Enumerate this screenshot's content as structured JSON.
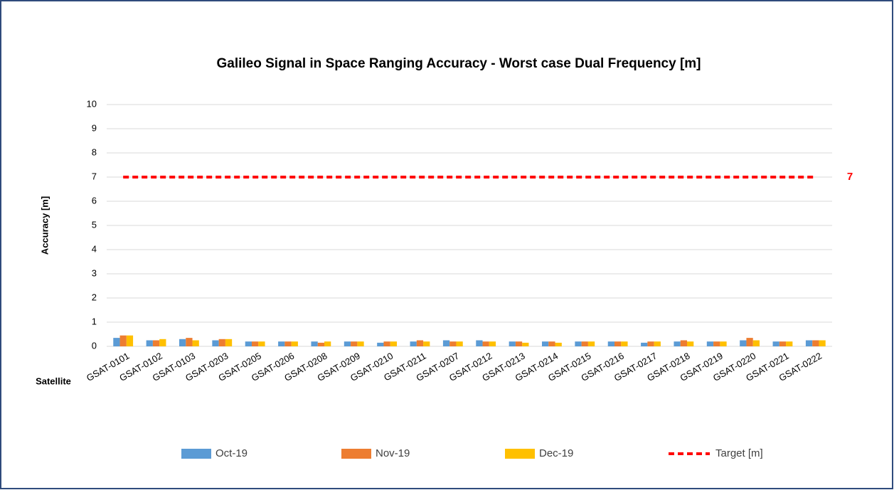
{
  "chart_data": {
    "type": "bar",
    "title": "Galileo Signal in Space Ranging Accuracy - Worst case Dual Frequency [m]",
    "y_label": "Accuracy  [m]",
    "x_label": "Satellite",
    "categories": [
      "GSAT-0101",
      "GSAT-0102",
      "GSAT-0103",
      "GSAT-0203",
      "GSAT-0205",
      "GSAT-0206",
      "GSAT-0208",
      "GSAT-0209",
      "GSAT-0210",
      "GSAT-0211",
      "GSAT-0207",
      "GSAT-0212",
      "GSAT-0213",
      "GSAT-0214",
      "GSAT-0215",
      "GSAT-0216",
      "GSAT-0217",
      "GSAT-0218",
      "GSAT-0219",
      "GSAT-0220",
      "GSAT-0221",
      "GSAT-0222"
    ],
    "series": [
      {
        "name": "Oct-19",
        "color": "#5b9bd5",
        "values": [
          0.35,
          0.25,
          0.3,
          0.25,
          0.2,
          0.2,
          0.2,
          0.2,
          0.15,
          0.2,
          0.25,
          0.25,
          0.2,
          0.2,
          0.2,
          0.2,
          0.15,
          0.2,
          0.2,
          0.25,
          0.2,
          0.25
        ]
      },
      {
        "name": "Nov-19",
        "color": "#ed7d31",
        "values": [
          0.45,
          0.25,
          0.35,
          0.3,
          0.2,
          0.2,
          0.15,
          0.2,
          0.2,
          0.25,
          0.2,
          0.2,
          0.2,
          0.2,
          0.2,
          0.2,
          0.2,
          0.25,
          0.2,
          0.35,
          0.2,
          0.25
        ]
      },
      {
        "name": "Dec-19",
        "color": "#ffc000",
        "values": [
          0.45,
          0.3,
          0.25,
          0.3,
          0.2,
          0.2,
          0.2,
          0.2,
          0.2,
          0.2,
          0.2,
          0.2,
          0.15,
          0.15,
          0.2,
          0.2,
          0.2,
          0.2,
          0.2,
          0.25,
          0.2,
          0.25
        ]
      }
    ],
    "target": {
      "name": "Target [m]",
      "value": 7,
      "color": "#ff0000"
    },
    "ylim": [
      0,
      10
    ],
    "yticks": [
      0,
      1,
      2,
      3,
      4,
      5,
      6,
      7,
      8,
      9,
      10
    ],
    "grid": true
  }
}
